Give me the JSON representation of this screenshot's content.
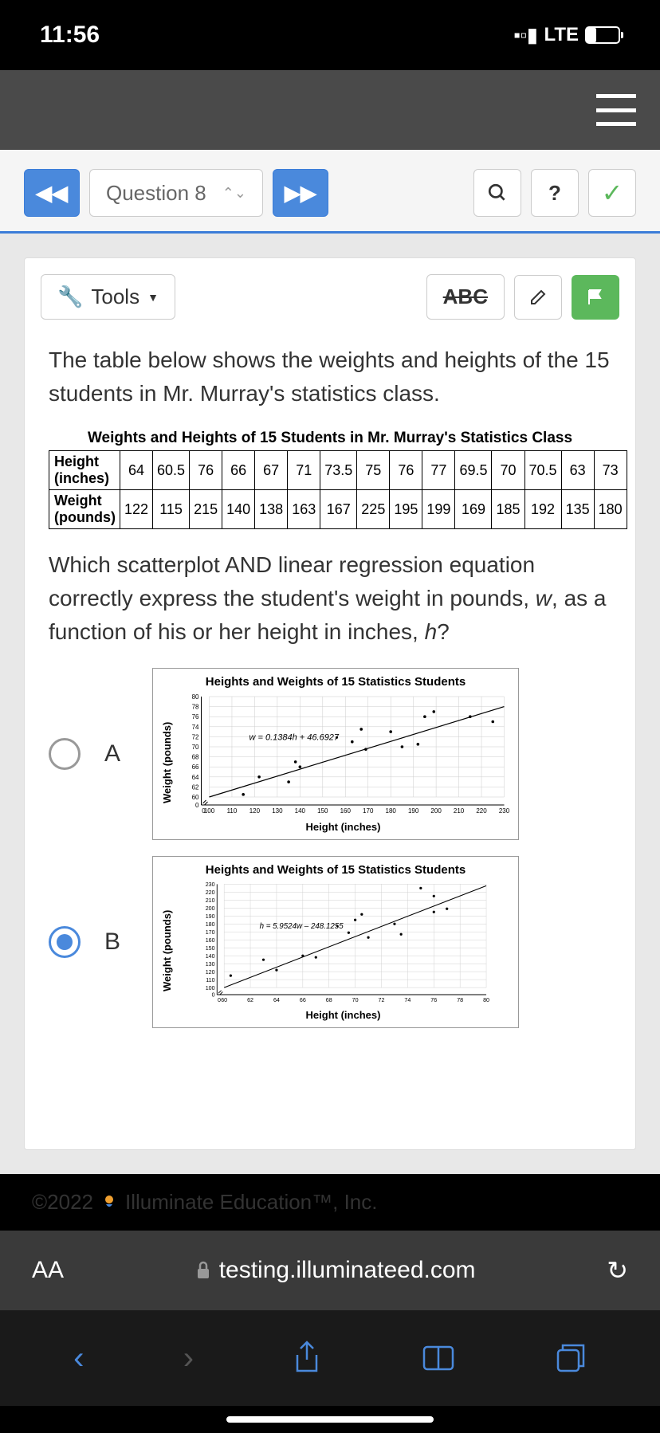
{
  "status": {
    "time": "11:56",
    "network": "LTE"
  },
  "nav": {
    "question_label": "Question 8"
  },
  "tools": {
    "label": "Tools",
    "abc": "ABC"
  },
  "question": {
    "intro": "The table below shows the weights and heights of the 15 students in Mr. Murray's statistics class.",
    "table_title": "Weights and Heights of 15 Students in Mr. Murray's Statistics Class",
    "row1_label": "Height (inches)",
    "row2_label": "Weight (pounds)",
    "heights": [
      "64",
      "60.5",
      "76",
      "66",
      "67",
      "71",
      "73.5",
      "75",
      "76",
      "77",
      "69.5",
      "70",
      "70.5",
      "63",
      "73"
    ],
    "weights": [
      "122",
      "115",
      "215",
      "140",
      "138",
      "163",
      "167",
      "225",
      "195",
      "199",
      "169",
      "185",
      "192",
      "135",
      "180"
    ],
    "prompt_pre": "Which scatterplot AND linear regression equation correctly express the student's weight in pounds, ",
    "prompt_w": "w",
    "prompt_mid": ", as a function of his or her height in inches, ",
    "prompt_h": "h",
    "prompt_end": "?"
  },
  "chartA": {
    "title": "Heights and Weights of 15 Statistics Students",
    "ylabel": "Weight (pounds)",
    "xlabel": "Height (inches)",
    "equation": "w = 0.1384h + 46.6927",
    "yticks": [
      "0",
      "60",
      "62",
      "64",
      "66",
      "68",
      "70",
      "72",
      "74",
      "76",
      "78",
      "80"
    ],
    "xticks": [
      "0",
      "100",
      "110",
      "120",
      "130",
      "140",
      "150",
      "160",
      "170",
      "180",
      "190",
      "200",
      "210",
      "220",
      "230"
    ],
    "letter": "A"
  },
  "chartB": {
    "title": "Heights and Weights of 15 Statistics Students",
    "ylabel": "Weight (pounds)",
    "xlabel": "Height (inches)",
    "equation": "h = 5.9524w – 248.1255",
    "yticks": [
      "0",
      "100",
      "110",
      "120",
      "130",
      "140",
      "150",
      "160",
      "170",
      "180",
      "190",
      "200",
      "210",
      "220",
      "230"
    ],
    "xticks": [
      "0",
      "60",
      "62",
      "64",
      "66",
      "68",
      "70",
      "72",
      "74",
      "76",
      "78",
      "80"
    ],
    "letter": "B"
  },
  "footer": {
    "copyright": "©2022",
    "company": "Illuminate Education™, Inc."
  },
  "browser": {
    "aa": "AA",
    "url": "testing.illuminateed.com"
  },
  "colors": {
    "primary": "#4a89dc",
    "green": "#5cb85c"
  },
  "scatter_points": [
    [
      64,
      122
    ],
    [
      60.5,
      115
    ],
    [
      76,
      215
    ],
    [
      66,
      140
    ],
    [
      67,
      138
    ],
    [
      71,
      163
    ],
    [
      73.5,
      167
    ],
    [
      75,
      225
    ],
    [
      76,
      195
    ],
    [
      77,
      199
    ],
    [
      69.5,
      169
    ],
    [
      70,
      185
    ],
    [
      70.5,
      192
    ],
    [
      63,
      135
    ],
    [
      73,
      180
    ]
  ]
}
